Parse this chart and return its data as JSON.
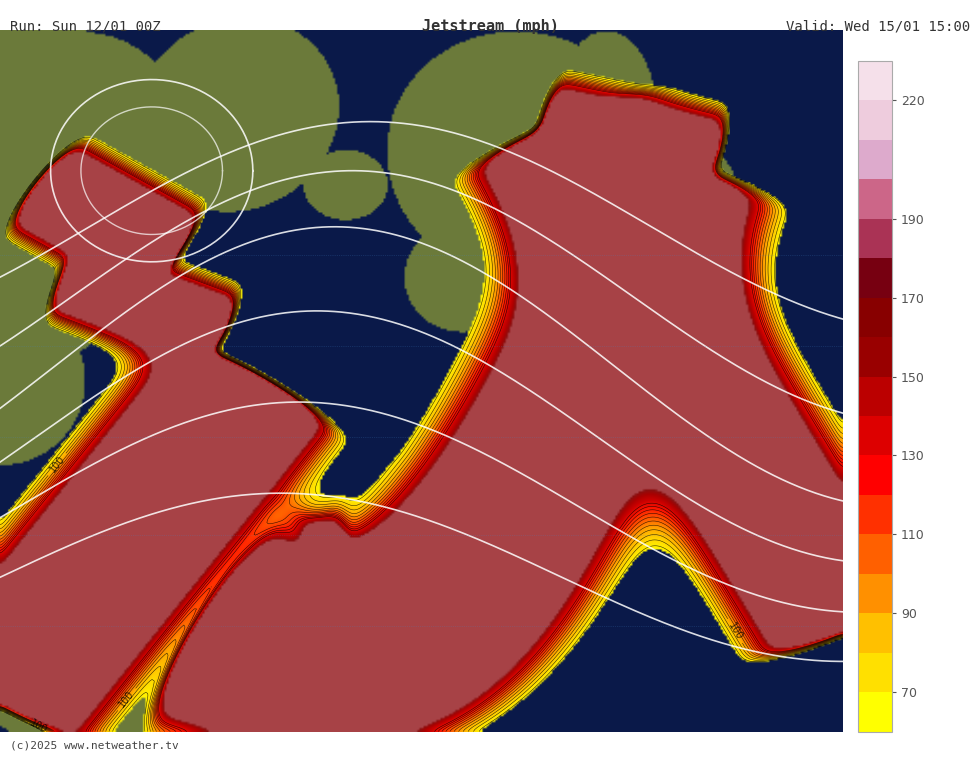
{
  "title": "Jetstream (mph)",
  "run_label": "Run: Sun 12/01 00Z",
  "valid_label": "Valid: Wed 15/01 15:00",
  "copyright": "(c)2025 www.netweather.tv",
  "colorbar_ticks": [
    70,
    90,
    110,
    130,
    150,
    170,
    190,
    220
  ],
  "colorbar_colors": [
    "#ffff00",
    "#ffd700",
    "#ffa500",
    "#ff6600",
    "#ff2200",
    "#cc0000",
    "#993333",
    "#ffcccc"
  ],
  "background_ocean": "#0a1a4a",
  "background_land": "#6b7a3a",
  "fig_bg": "#ffffff",
  "header_bg": "#ffffff",
  "title_color": "#222222",
  "colorbar_label_color": "#555555"
}
